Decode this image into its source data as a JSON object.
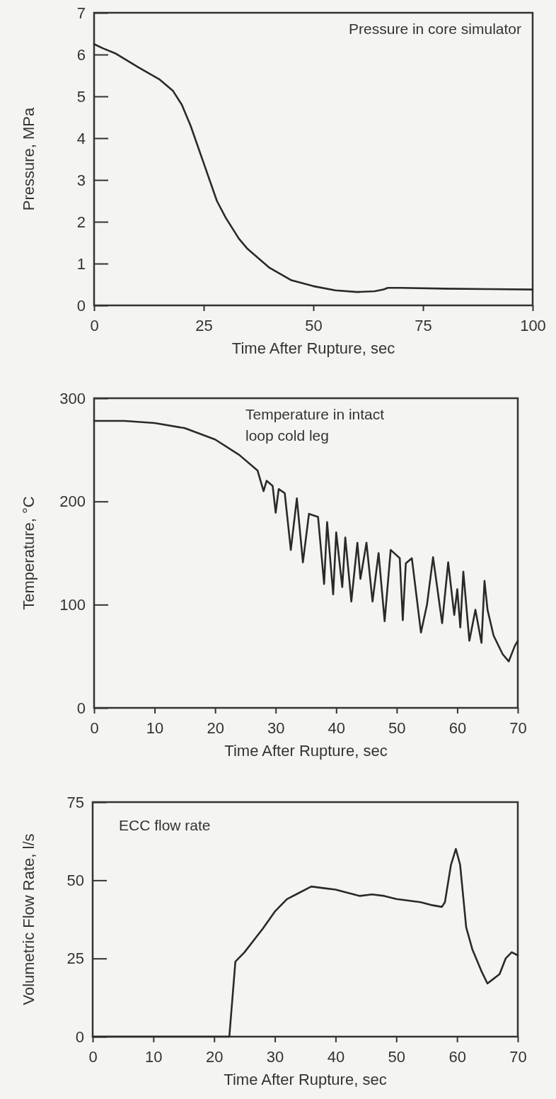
{
  "chart_data": [
    {
      "type": "line",
      "title": "Pressure in core simulator",
      "xlabel": "Time After Rupture, sec",
      "ylabel": "Pressure, MPa",
      "xlim": [
        0,
        100
      ],
      "ylim": [
        0,
        7
      ],
      "xticks": [
        0,
        25,
        50,
        75,
        100
      ],
      "yticks": [
        0,
        1,
        2,
        3,
        4,
        5,
        6,
        7
      ],
      "grid": false,
      "series": [
        {
          "color": "#2a2a2a",
          "x": [
            0,
            2,
            5,
            10,
            15,
            18,
            20,
            22,
            25,
            28,
            30,
            33,
            35,
            40,
            45,
            50,
            55,
            60,
            64,
            66,
            67,
            70,
            80,
            90,
            100
          ],
          "values": [
            6.25,
            6.15,
            6.02,
            5.7,
            5.4,
            5.13,
            4.8,
            4.3,
            3.4,
            2.5,
            2.1,
            1.6,
            1.35,
            0.9,
            0.6,
            0.46,
            0.36,
            0.32,
            0.34,
            0.38,
            0.42,
            0.42,
            0.4,
            0.39,
            0.38
          ]
        }
      ]
    },
    {
      "type": "line",
      "title": "Temperature in intact\nloop cold leg",
      "xlabel": "Time After Rupture, sec",
      "ylabel": "Temperature, °C",
      "xlim": [
        0,
        70
      ],
      "ylim": [
        0,
        300
      ],
      "xticks": [
        0,
        10,
        20,
        30,
        40,
        50,
        60,
        70
      ],
      "yticks": [
        0,
        100,
        200,
        300
      ],
      "grid": false,
      "series": [
        {
          "color": "#2a2a2a",
          "x": [
            0,
            5,
            10,
            15,
            20,
            24,
            27,
            28,
            28.5,
            29.5,
            30,
            30.5,
            31.5,
            32.5,
            33.5,
            34.5,
            35.5,
            37,
            38,
            38.5,
            39.5,
            40,
            41,
            41.5,
            42.5,
            43.5,
            44,
            45,
            46,
            47,
            48,
            49,
            50.5,
            51,
            51.5,
            52.5,
            54,
            55,
            56,
            57.5,
            58.5,
            59.5,
            60,
            60.5,
            61,
            62,
            63,
            64,
            64.5,
            65,
            66,
            67.5,
            68.5,
            69.5,
            70
          ],
          "values": [
            278,
            278,
            276,
            271,
            260,
            245,
            230,
            210,
            220,
            215,
            189,
            212,
            208,
            153,
            203,
            141,
            188,
            185,
            120,
            180,
            110,
            170,
            117,
            165,
            103,
            160,
            125,
            160,
            103,
            150,
            84,
            153,
            145,
            85,
            140,
            145,
            73,
            100,
            146,
            82,
            141,
            90,
            115,
            78,
            132,
            65,
            95,
            63,
            123,
            95,
            70,
            52,
            45,
            60,
            65
          ]
        }
      ]
    },
    {
      "type": "line",
      "title": "ECC flow rate",
      "xlabel": "Time After Rupture, sec",
      "ylabel": "Volumetric Flow Rate, l/s",
      "xlim": [
        0,
        70
      ],
      "ylim": [
        0,
        75
      ],
      "xticks": [
        0,
        10,
        20,
        30,
        40,
        50,
        60,
        70
      ],
      "yticks": [
        0,
        25,
        50,
        75
      ],
      "grid": false,
      "series": [
        {
          "color": "#2a2a2a",
          "x": [
            0,
            10,
            20,
            22.5,
            23.5,
            25,
            27,
            28,
            30,
            32,
            34,
            36,
            38,
            40,
            42,
            44,
            46,
            48,
            50,
            52,
            54,
            56,
            57.5,
            58,
            59,
            59.8,
            60.5,
            61.5,
            62.5,
            64,
            65,
            66,
            67,
            68,
            69,
            70
          ],
          "values": [
            0,
            0,
            0,
            0,
            24,
            27,
            32,
            34.5,
            40,
            44,
            46,
            48,
            47.5,
            47,
            46,
            45,
            45.5,
            45,
            44,
            43.5,
            43,
            42,
            41.5,
            43,
            55,
            60,
            55,
            35,
            28,
            21,
            17,
            18.5,
            20,
            25,
            27,
            26
          ]
        }
      ]
    }
  ]
}
